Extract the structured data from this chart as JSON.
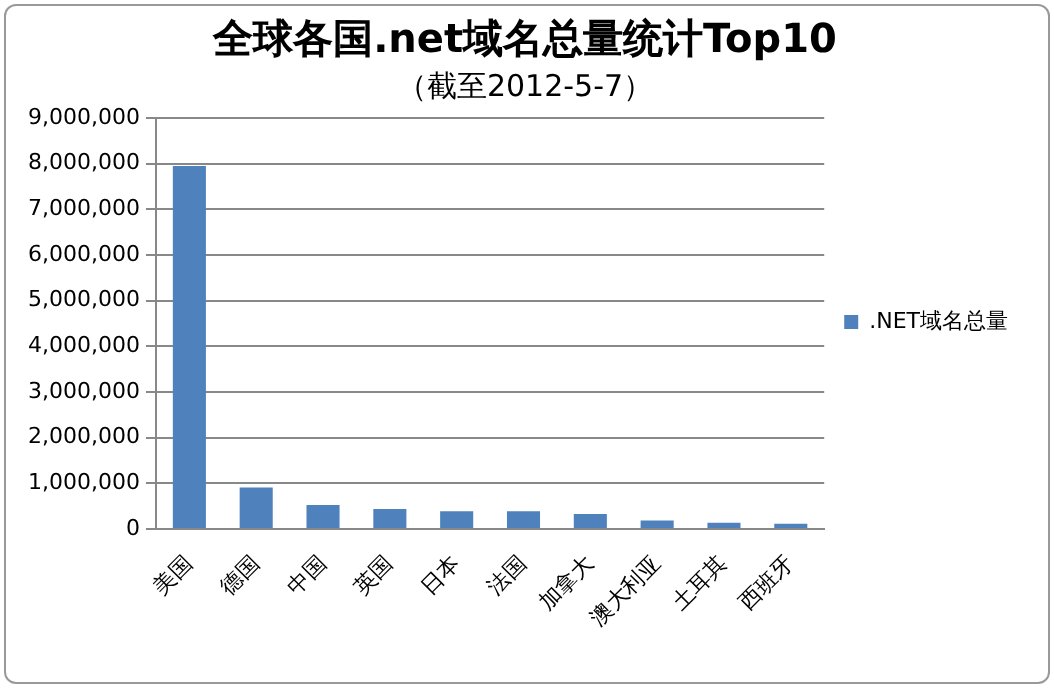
{
  "chart_data": {
    "type": "bar",
    "title": "全球各国.net域名总量统计Top10",
    "subtitle": "（截至2012-5-7）",
    "categories": [
      "美国",
      "德国",
      "中国",
      "英国",
      "日本",
      "法国",
      "加拿大",
      "澳大利亚",
      "土耳其",
      "西班牙"
    ],
    "series": [
      {
        "name": ".NET域名总量",
        "color": "#4f81bd",
        "values": [
          7950000,
          910000,
          530000,
          440000,
          390000,
          390000,
          330000,
          190000,
          140000,
          120000
        ]
      }
    ],
    "ylim": [
      0,
      9000000
    ],
    "yticks": [
      0,
      {
        "value": 1000000,
        "label": "1,000,000"
      },
      {
        "value": 2000000,
        "label": "2,000,000"
      },
      {
        "value": 3000000,
        "label": "3,000,000"
      },
      {
        "value": 4000000,
        "label": "4,000,000"
      },
      {
        "value": 5000000,
        "label": "5,000,000"
      },
      {
        "value": 6000000,
        "label": "6,000,000"
      },
      {
        "value": 7000000,
        "label": "7,000,000"
      },
      {
        "value": 8000000,
        "label": "8,000,000"
      },
      {
        "value": 9000000,
        "label": "9,000,000"
      }
    ],
    "grid": "y",
    "legend": "right"
  }
}
